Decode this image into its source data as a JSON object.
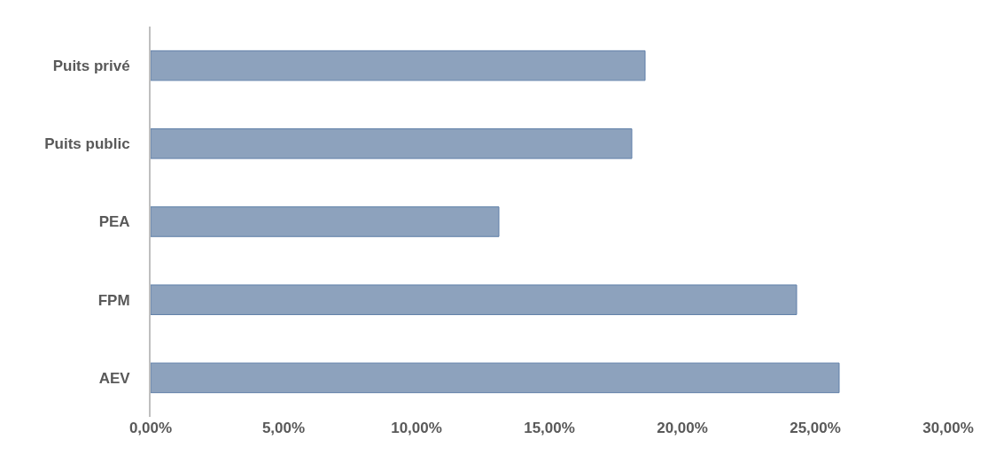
{
  "chart_data": {
    "type": "bar",
    "orientation": "horizontal",
    "categories": [
      "Puits privé",
      "Puits public",
      "PEA",
      "FPM",
      "AEV"
    ],
    "values": [
      18.6,
      18.1,
      13.1,
      24.3,
      25.9
    ],
    "color": "#8da2bd",
    "xlim": [
      0,
      30
    ],
    "xticks": [
      {
        "value": 0,
        "label": "0,00%"
      },
      {
        "value": 5,
        "label": "5,00%"
      },
      {
        "value": 10,
        "label": "10,00%"
      },
      {
        "value": 15,
        "label": "15,00%"
      },
      {
        "value": 20,
        "label": "20,00%"
      },
      {
        "value": 25,
        "label": "25,00%"
      },
      {
        "value": 30,
        "label": "30,00%"
      }
    ],
    "tick_labels": "xy"
  }
}
